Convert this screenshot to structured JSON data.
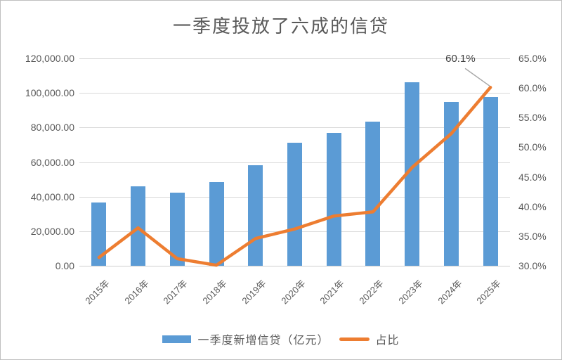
{
  "title": "一季度投放了六成的信贷",
  "chart_data": {
    "type": "bar",
    "subtype": "combo-bar-line-dual-axis",
    "categories": [
      "2015年",
      "2016年",
      "2017年",
      "2018年",
      "2019年",
      "2020年",
      "2021年",
      "2022年",
      "2023年",
      "2024年",
      "2025年"
    ],
    "series": [
      {
        "name": "一季度新增信贷（亿元）",
        "type": "bar",
        "axis": "left",
        "color": "#5b9bd5",
        "values": [
          36800,
          46100,
          42200,
          48600,
          58100,
          71000,
          76700,
          83400,
          106000,
          94600,
          97800
        ]
      },
      {
        "name": "占比",
        "type": "line",
        "axis": "right",
        "color": "#ed7d31",
        "values": [
          31.4,
          36.4,
          31.2,
          30.1,
          34.6,
          36.2,
          38.4,
          39.1,
          46.6,
          52.3,
          60.1
        ]
      }
    ],
    "left_axis": {
      "min": 0,
      "max": 120000,
      "step": 20000,
      "tick_labels": [
        "120,000.00",
        "100,000.00",
        "80,000.00",
        "60,000.00",
        "40,000.00",
        "20,000.00",
        "0.00"
      ]
    },
    "right_axis": {
      "min": 30,
      "max": 65,
      "step": 5,
      "tick_labels": [
        "65.0%",
        "60.0%",
        "55.0%",
        "50.0%",
        "45.0%",
        "40.0%",
        "35.0%",
        "30.0%"
      ]
    },
    "annotation": {
      "text": "60.1%",
      "target_category": "2025年",
      "target_value": 60.1
    },
    "grid": true,
    "legend_position": "bottom"
  },
  "colors": {
    "bar": "#5b9bd5",
    "line": "#ed7d31",
    "gridline": "#d9d9d9",
    "text": "#595959",
    "annotation_text": "#404040",
    "leader_line": "#a6a6a6"
  }
}
